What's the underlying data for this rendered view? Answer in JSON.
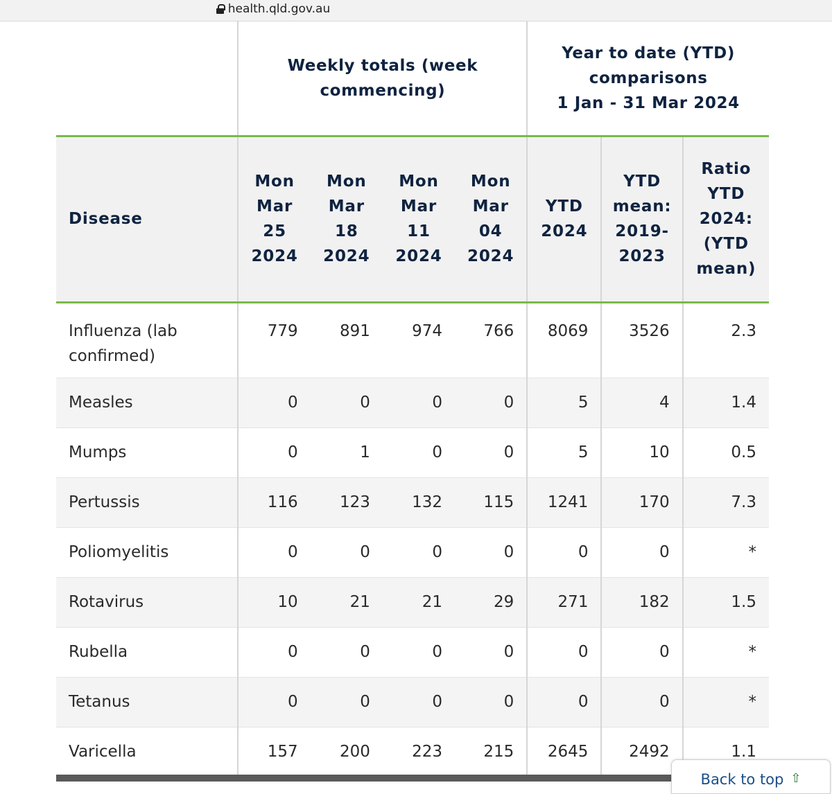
{
  "browser": {
    "url": "health.qld.gov.au"
  },
  "table": {
    "group_headers": {
      "weekly": "Weekly totals (week commencing)",
      "ytd_line1": "Year to date (YTD) comparisons",
      "ytd_line2": "1 Jan - 31 Mar 2024"
    },
    "columns": {
      "disease": "Disease",
      "wk1": [
        "Mon",
        "Mar",
        "25",
        "2024"
      ],
      "wk2": [
        "Mon",
        "Mar",
        "18",
        "2024"
      ],
      "wk3": [
        "Mon",
        "Mar",
        "11",
        "2024"
      ],
      "wk4": [
        "Mon",
        "Mar",
        "04",
        "2024"
      ],
      "ytd": [
        "YTD",
        "2024"
      ],
      "mean": [
        "YTD",
        "mean:",
        "2019-",
        "2023"
      ],
      "ratio": [
        "Ratio",
        "YTD",
        "2024:",
        "(YTD",
        "mean)"
      ]
    },
    "rows": [
      {
        "disease": "Influenza (lab confirmed)",
        "wk1": "779",
        "wk2": "891",
        "wk3": "974",
        "wk4": "766",
        "ytd": "8069",
        "mean": "3526",
        "ratio": "2.3"
      },
      {
        "disease": "Measles",
        "wk1": "0",
        "wk2": "0",
        "wk3": "0",
        "wk4": "0",
        "ytd": "5",
        "mean": "4",
        "ratio": "1.4"
      },
      {
        "disease": "Mumps",
        "wk1": "0",
        "wk2": "1",
        "wk3": "0",
        "wk4": "0",
        "ytd": "5",
        "mean": "10",
        "ratio": "0.5"
      },
      {
        "disease": "Pertussis",
        "wk1": "116",
        "wk2": "123",
        "wk3": "132",
        "wk4": "115",
        "ytd": "1241",
        "mean": "170",
        "ratio": "7.3"
      },
      {
        "disease": "Poliomyelitis",
        "wk1": "0",
        "wk2": "0",
        "wk3": "0",
        "wk4": "0",
        "ytd": "0",
        "mean": "0",
        "ratio": "*"
      },
      {
        "disease": "Rotavirus",
        "wk1": "10",
        "wk2": "21",
        "wk3": "21",
        "wk4": "29",
        "ytd": "271",
        "mean": "182",
        "ratio": "1.5"
      },
      {
        "disease": "Rubella",
        "wk1": "0",
        "wk2": "0",
        "wk3": "0",
        "wk4": "0",
        "ytd": "0",
        "mean": "0",
        "ratio": "*"
      },
      {
        "disease": "Tetanus",
        "wk1": "0",
        "wk2": "0",
        "wk3": "0",
        "wk4": "0",
        "ytd": "0",
        "mean": "0",
        "ratio": "*"
      },
      {
        "disease": "Varicella",
        "wk1": "157",
        "wk2": "200",
        "wk3": "223",
        "wk4": "215",
        "ytd": "2645",
        "mean": "2492",
        "ratio": "1.1"
      }
    ]
  },
  "back_to_top": {
    "label": "Back to top",
    "icon": "arrow-up-icon"
  }
}
